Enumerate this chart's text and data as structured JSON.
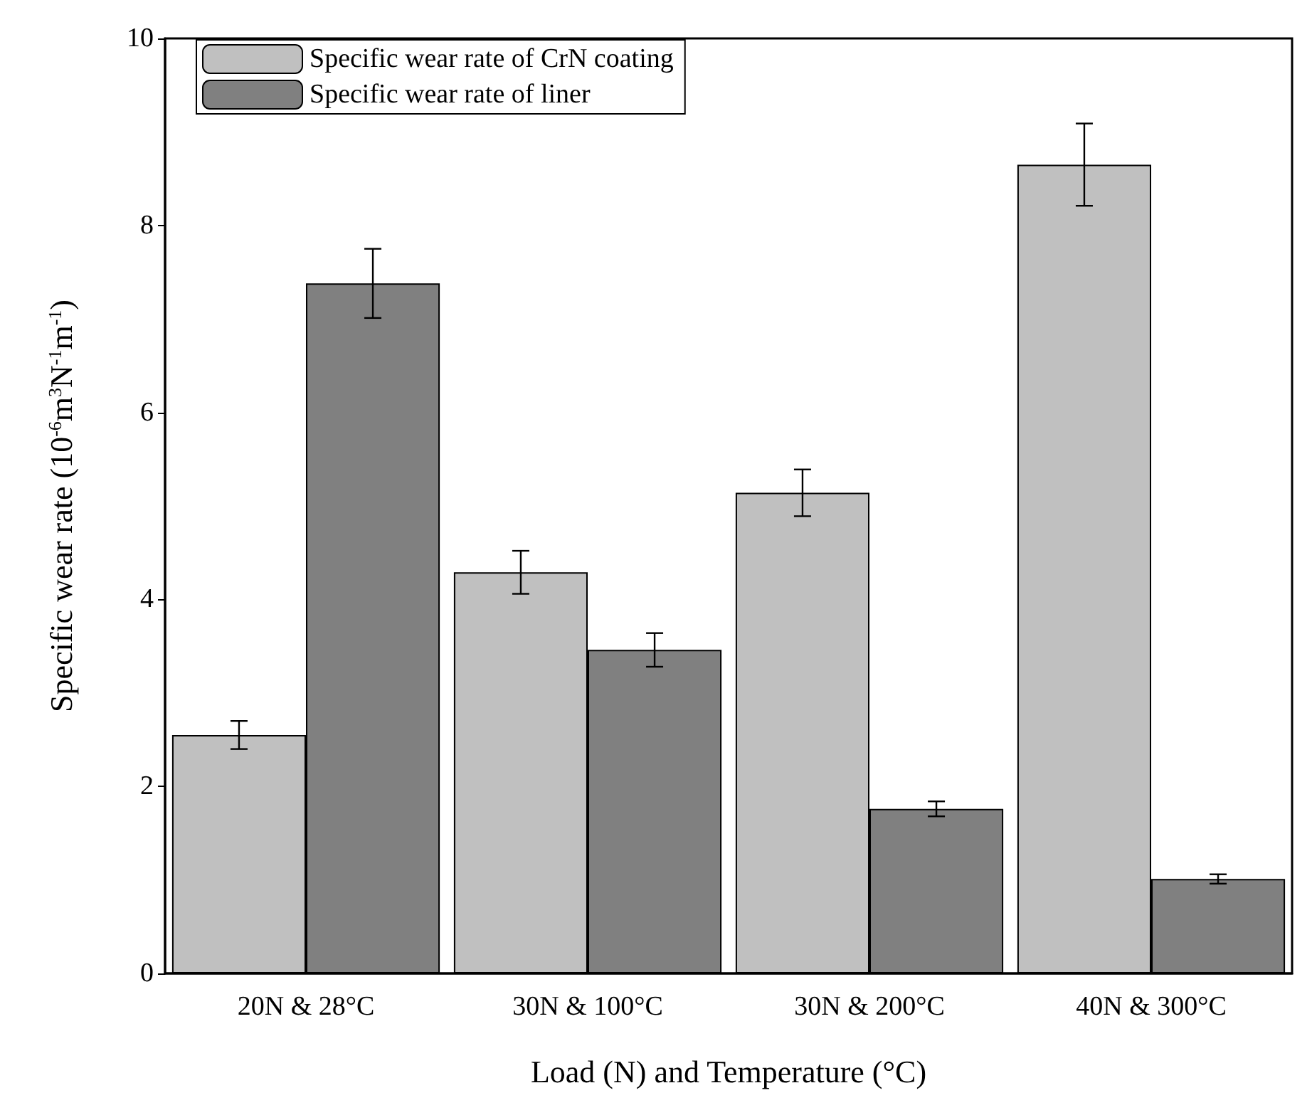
{
  "chart_data": {
    "type": "bar",
    "xlabel": "Load (N) and Temperature (°C)",
    "ylabel": "Specific wear rate (10$^{-6}$m$^{3}$N$^{-1}$m$^{-1}$)",
    "categories": [
      "20N & 28°C",
      "30N & 100°C",
      "30N & 200°C",
      "40N & 300°C"
    ],
    "series": [
      {
        "name": "Specific wear rate of CrN coating",
        "color": "#c0c0c0",
        "values": [
          2.55,
          4.29,
          5.14,
          8.65
        ],
        "errors": [
          0.15,
          0.23,
          0.25,
          0.44
        ]
      },
      {
        "name": "Specific wear rate of liner",
        "color": "#808080",
        "values": [
          7.38,
          3.46,
          1.76,
          1.01
        ],
        "errors": [
          0.37,
          0.18,
          0.08,
          0.05
        ]
      }
    ],
    "ylim": [
      0,
      10
    ],
    "yticks": [
      0,
      2,
      4,
      6,
      8,
      10
    ],
    "grid": false,
    "legend": "top left"
  }
}
